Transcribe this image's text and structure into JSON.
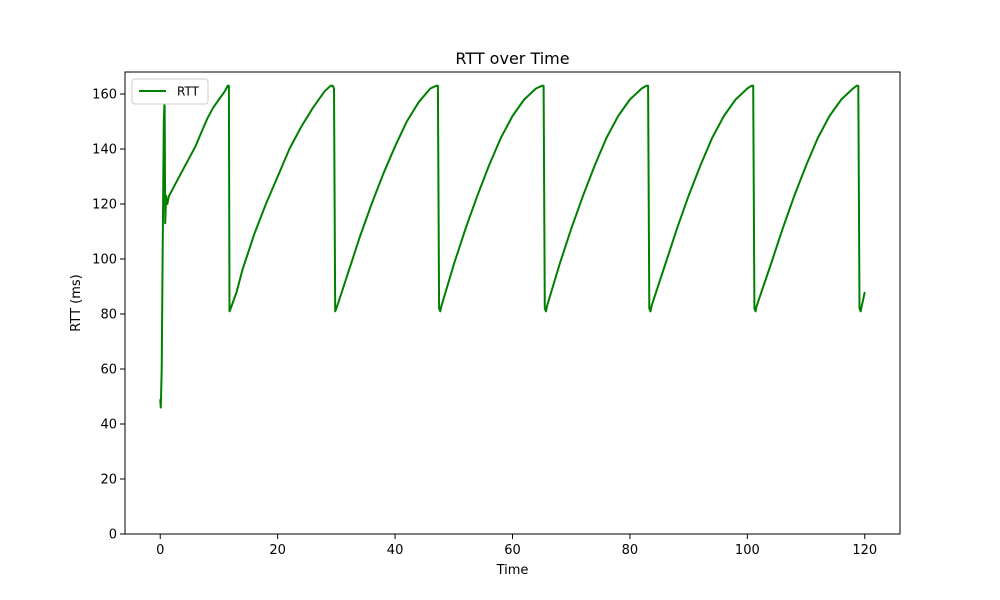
{
  "chart_data": {
    "type": "line",
    "title": "RTT over Time",
    "xlabel": "Time",
    "ylabel": "RTT (ms)",
    "xlim": [
      -6,
      126
    ],
    "ylim": [
      0,
      168
    ],
    "xticks": [
      0,
      20,
      40,
      60,
      80,
      100,
      120
    ],
    "yticks": [
      0,
      20,
      40,
      60,
      80,
      100,
      120,
      140,
      160
    ],
    "grid": false,
    "legend_position": "upper-left",
    "colors": {
      "series": "#008000",
      "axis": "#000000",
      "background": "#ffffff"
    },
    "series": [
      {
        "name": "RTT",
        "color": "#008000",
        "x": [
          0.0,
          0.1,
          0.25,
          0.4,
          0.6,
          0.75,
          0.85,
          1.0,
          1.2,
          1.5,
          2.0,
          3.0,
          4.0,
          5.0,
          6.0,
          7.0,
          8.0,
          9.0,
          10.0,
          11.0,
          11.5,
          11.7,
          11.8,
          12.0,
          13.0,
          14.0,
          16.0,
          18.0,
          20.0,
          22.0,
          24.0,
          26.0,
          28.0,
          29.0,
          29.4,
          29.6,
          29.8,
          30.0,
          32.0,
          34.0,
          36.0,
          38.0,
          40.0,
          42.0,
          44.0,
          46.0,
          47.0,
          47.3,
          47.5,
          47.7,
          47.9,
          50.0,
          52.0,
          54.0,
          56.0,
          58.0,
          60.0,
          62.0,
          64.0,
          65.0,
          65.3,
          65.5,
          65.7,
          65.9,
          68.0,
          70.0,
          72.0,
          74.0,
          76.0,
          78.0,
          80.0,
          82.0,
          82.8,
          83.1,
          83.3,
          83.5,
          83.7,
          86.0,
          88.0,
          90.0,
          92.0,
          94.0,
          96.0,
          98.0,
          100.0,
          100.7,
          101.0,
          101.2,
          101.4,
          101.6,
          104.0,
          106.0,
          108.0,
          110.0,
          112.0,
          114.0,
          116.0,
          118.0,
          118.6,
          118.9,
          119.1,
          119.3,
          119.5,
          120.0
        ],
        "y": [
          49,
          46,
          60,
          100,
          150,
          158,
          113,
          123,
          120,
          123,
          125,
          129,
          133,
          137,
          141,
          146,
          151,
          155,
          158,
          161,
          163,
          163,
          81,
          82,
          88,
          96,
          109,
          120,
          130,
          140,
          148,
          155,
          161,
          163,
          163,
          162,
          81,
          82,
          95,
          108,
          120,
          131,
          141,
          150,
          157,
          162,
          163,
          163,
          82,
          81,
          83,
          98,
          111,
          123,
          134,
          144,
          152,
          158,
          162,
          163,
          163,
          82,
          81,
          83,
          98,
          111,
          123,
          134,
          144,
          152,
          158,
          162,
          163,
          163,
          82,
          81,
          83,
          98,
          111,
          123,
          134,
          144,
          152,
          158,
          162,
          163,
          163,
          82,
          81,
          83,
          98,
          111,
          123,
          134,
          144,
          152,
          158,
          162,
          163,
          163,
          82,
          81,
          83,
          88
        ]
      }
    ]
  }
}
